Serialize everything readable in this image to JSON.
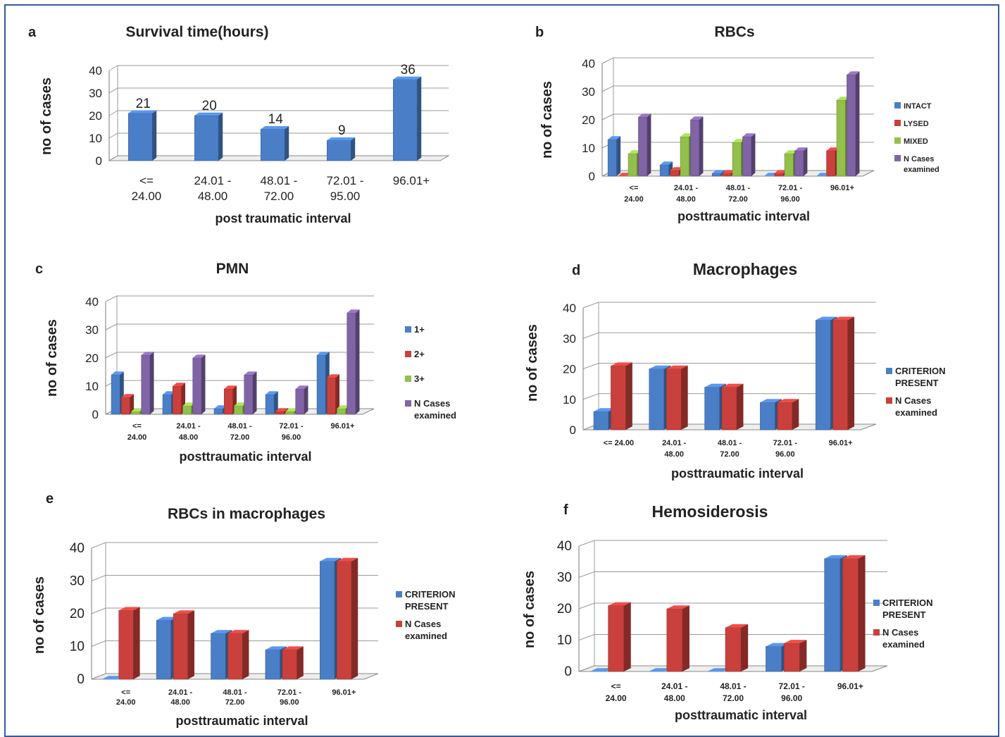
{
  "colors": {
    "blue": "#4a7fc7",
    "red": "#c9403c",
    "green": "#93bf4c",
    "purple": "#8064a6"
  },
  "chart_data": [
    {
      "id": "a",
      "panel_letter": "a",
      "type": "bar",
      "title": "Survival time(hours)",
      "xlabel": "post traumatic interval",
      "ylabel": "no of cases",
      "ylim": [
        0,
        40
      ],
      "yticks": [
        0,
        10,
        20,
        30,
        40
      ],
      "categories": [
        [
          "<=",
          "24.00"
        ],
        [
          "24.01 -",
          "48.00"
        ],
        [
          "48.01 -",
          "72.00"
        ],
        [
          "72.01 -",
          "95.00"
        ],
        [
          "96.01+",
          ""
        ]
      ],
      "series": [
        {
          "values": [
            21,
            20,
            14,
            9,
            36
          ],
          "color": "blue"
        }
      ],
      "data_labels": [
        "21",
        "20",
        "14",
        "9",
        "36"
      ],
      "legend": []
    },
    {
      "id": "b",
      "panel_letter": "b",
      "type": "bar",
      "title": "RBCs",
      "xlabel": "posttraumatic interval",
      "ylabel": "no of cases",
      "ylim": [
        0,
        40
      ],
      "yticks": [
        0,
        10,
        20,
        30,
        40
      ],
      "categories": [
        [
          "<=",
          "24.00"
        ],
        [
          "24.01 -",
          "48.00"
        ],
        [
          "48.01 -",
          "72.00"
        ],
        [
          "72.01 -",
          "96.00"
        ],
        [
          "96.01+",
          ""
        ]
      ],
      "series": [
        {
          "name": "INTACT",
          "values": [
            13,
            4,
            1,
            0,
            0
          ],
          "color": "blue"
        },
        {
          "name": "LYSED",
          "values": [
            0,
            2,
            1,
            1,
            9
          ],
          "color": "red"
        },
        {
          "name": "MIXED",
          "values": [
            8,
            14,
            12,
            8,
            27
          ],
          "color": "green"
        },
        {
          "name": "N Cases examined",
          "values": [
            21,
            20,
            14,
            9,
            36
          ],
          "color": "purple"
        }
      ],
      "legend": [
        {
          "label": [
            "INTACT"
          ],
          "color": "blue"
        },
        {
          "label": [
            "LYSED"
          ],
          "color": "red"
        },
        {
          "label": [
            "MIXED"
          ],
          "color": "green"
        },
        {
          "label": [
            "N Cases",
            "examined"
          ],
          "color": "purple"
        }
      ]
    },
    {
      "id": "c",
      "panel_letter": "c",
      "type": "bar",
      "title": "PMN",
      "xlabel": "posttraumatic interval",
      "ylabel": "no of cases",
      "ylim": [
        0,
        40
      ],
      "yticks": [
        0,
        10,
        20,
        30,
        40
      ],
      "categories": [
        [
          "<=",
          "24.00"
        ],
        [
          "24.01 -",
          "48.00"
        ],
        [
          "48.01 -",
          "72.00"
        ],
        [
          "72.01 -",
          "96.00"
        ],
        [
          "96.01+",
          ""
        ]
      ],
      "series": [
        {
          "name": "1+",
          "values": [
            14,
            7,
            2,
            7,
            21
          ],
          "color": "blue"
        },
        {
          "name": "2+",
          "values": [
            6,
            10,
            9,
            1,
            13
          ],
          "color": "red"
        },
        {
          "name": "3+",
          "values": [
            1,
            3,
            3,
            1,
            2
          ],
          "color": "green"
        },
        {
          "name": "N Cases examined",
          "values": [
            21,
            20,
            14,
            9,
            36
          ],
          "color": "purple"
        }
      ],
      "legend": [
        {
          "label": [
            "1+"
          ],
          "color": "blue"
        },
        {
          "label": [
            "2+"
          ],
          "color": "red"
        },
        {
          "label": [
            "3+"
          ],
          "color": "green"
        },
        {
          "label": [
            "N Cases",
            "examined"
          ],
          "color": "purple"
        }
      ]
    },
    {
      "id": "d",
      "panel_letter": "d",
      "type": "bar",
      "title": "Macrophages",
      "xlabel": "posttraumatic interval",
      "ylabel": "no of cases",
      "ylim": [
        0,
        40
      ],
      "yticks": [
        0,
        10,
        20,
        30,
        40
      ],
      "categories": [
        [
          "<= 24.00",
          ""
        ],
        [
          "24.01 -",
          "48.00"
        ],
        [
          "48.01 -",
          "72.00"
        ],
        [
          "72.01 -",
          "96.00"
        ],
        [
          "96.01+",
          ""
        ]
      ],
      "series": [
        {
          "name": "CRITERION PRESENT",
          "values": [
            6,
            20,
            14,
            9,
            36
          ],
          "color": "blue"
        },
        {
          "name": "N Cases examined",
          "values": [
            21,
            20,
            14,
            9,
            36
          ],
          "color": "red"
        }
      ],
      "legend": [
        {
          "label": [
            "CRITERION",
            "PRESENT"
          ],
          "color": "blue"
        },
        {
          "label": [
            "N Cases",
            "examined"
          ],
          "color": "red"
        }
      ]
    },
    {
      "id": "e",
      "panel_letter": "e",
      "type": "bar",
      "title": "RBCs in macrophages",
      "xlabel": "posttraumatic interval",
      "ylabel": "no of cases",
      "ylim": [
        0,
        40
      ],
      "yticks": [
        0,
        10,
        20,
        30,
        40
      ],
      "categories": [
        [
          "<=",
          "24.00"
        ],
        [
          "24.01 -",
          "48.00"
        ],
        [
          "48.01 -",
          "72.00"
        ],
        [
          "72.01 -",
          "96.00"
        ],
        [
          "96.01+",
          ""
        ]
      ],
      "series": [
        {
          "name": "CRITERION PRESENT",
          "values": [
            0,
            18,
            14,
            9,
            36
          ],
          "color": "blue"
        },
        {
          "name": "N Cases examined",
          "values": [
            21,
            20,
            14,
            9,
            36
          ],
          "color": "red"
        }
      ],
      "legend": [
        {
          "label": [
            "CRITERION",
            "PRESENT"
          ],
          "color": "blue"
        },
        {
          "label": [
            "N Cases",
            "examined"
          ],
          "color": "red"
        }
      ]
    },
    {
      "id": "f",
      "panel_letter": "f",
      "type": "bar",
      "title": "Hemosiderosis",
      "xlabel": "posttraumatic interval",
      "ylabel": "no of cases",
      "ylim": [
        0,
        40
      ],
      "yticks": [
        0,
        10,
        20,
        30,
        40
      ],
      "categories": [
        [
          "<=",
          "24.00"
        ],
        [
          "24.01 -",
          "48.00"
        ],
        [
          "48.01 -",
          "72.00"
        ],
        [
          "72.01 -",
          "96.00"
        ],
        [
          "96.01+",
          ""
        ]
      ],
      "series": [
        {
          "name": "CRITERION PRESENT",
          "values": [
            0,
            0,
            0,
            8,
            36
          ],
          "color": "blue"
        },
        {
          "name": "N Cases examined",
          "values": [
            21,
            20,
            14,
            9,
            36
          ],
          "color": "red"
        }
      ],
      "legend": [
        {
          "label": [
            "CRITERION",
            "PRESENT"
          ],
          "color": "blue"
        },
        {
          "label": [
            "N Cases",
            "examined"
          ],
          "color": "red"
        }
      ]
    }
  ]
}
